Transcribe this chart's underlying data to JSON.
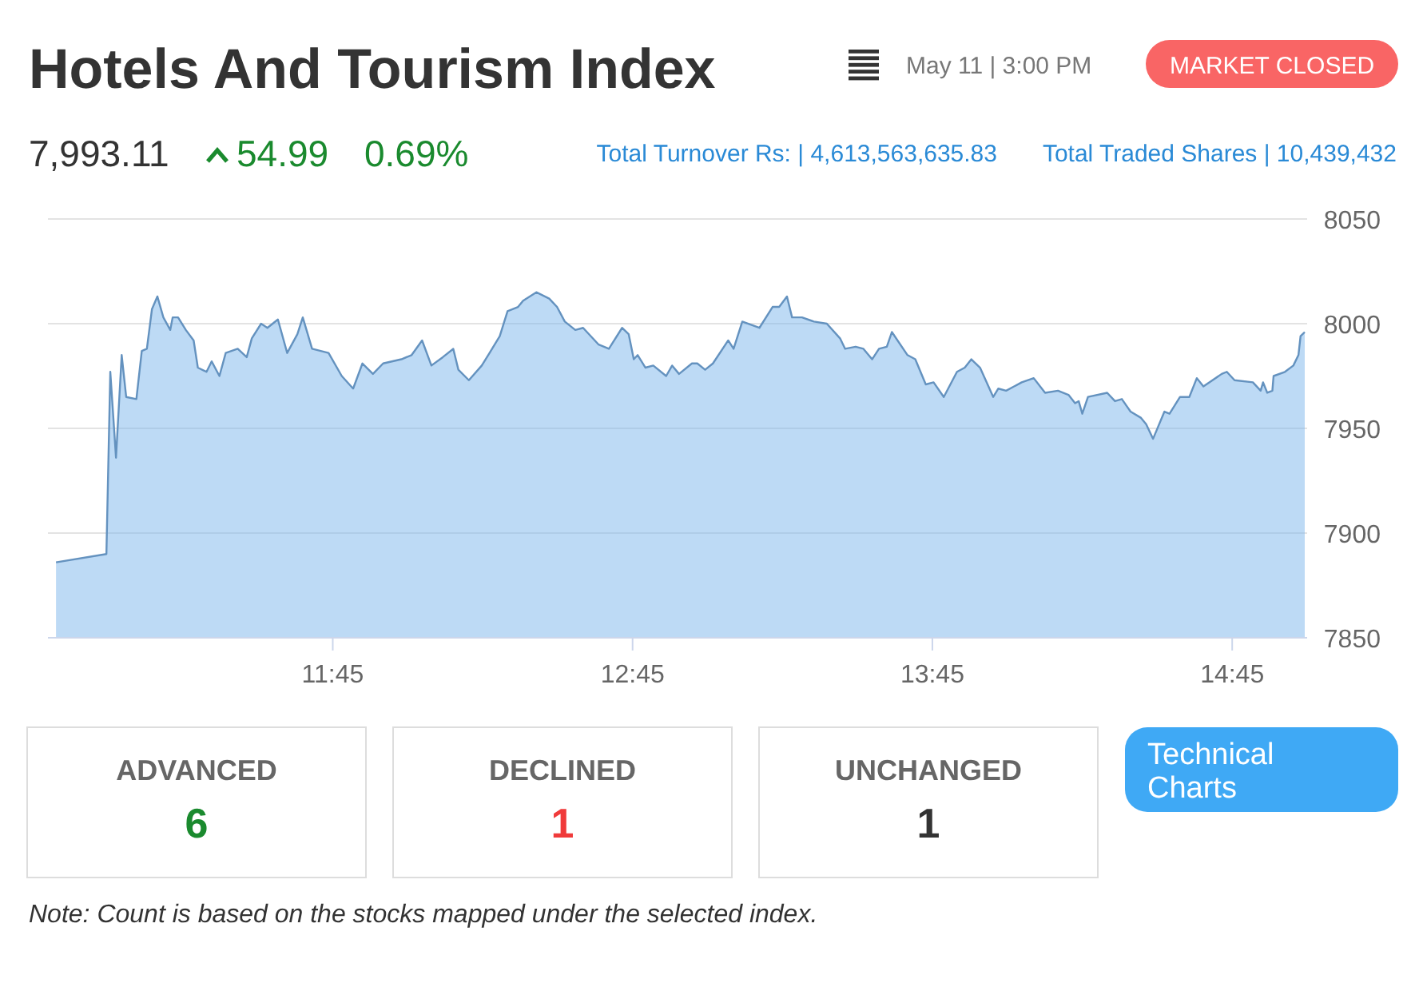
{
  "chart_data": {
    "type": "area",
    "title": "Hotels And Tourism Index",
    "subtitle": "May 11 | 3:00 PM",
    "annotations": [
      "MARKET CLOSED",
      "7,993.11",
      "54.99",
      "0.69%",
      "Total Turnover Rs: | 4,613,563,635.83",
      "Total Traded Shares | 10,439,432",
      "ADVANCED",
      "6",
      "DECLINED",
      "1",
      "UNCHANGED",
      "1",
      "Technical Charts",
      "Note: Count is based on the stocks mapped under the selected index."
    ],
    "xlim": [
      10.8,
      15.0
    ],
    "xticks": [
      {
        "value": 11.75,
        "label": "11:45"
      },
      {
        "value": 12.75,
        "label": "12:45"
      },
      {
        "value": 13.75,
        "label": "13:45"
      },
      {
        "value": 14.75,
        "label": "14:45"
      }
    ],
    "ylim": [
      7850,
      8050
    ],
    "yticks": [
      7850,
      7900,
      7950,
      8000,
      8050
    ],
    "grid": "y",
    "series": [
      {
        "color": "#7cb5ec",
        "x": [
          10.827,
          10.995,
          11.008,
          11.027,
          11.046,
          11.061,
          11.095,
          11.113,
          11.13,
          11.147,
          11.165,
          11.185,
          11.208,
          11.216,
          11.234,
          11.26,
          11.286,
          11.3,
          11.329,
          11.346,
          11.372,
          11.393,
          11.433,
          11.463,
          11.48,
          11.511,
          11.532,
          11.567,
          11.598,
          11.632,
          11.65,
          11.681,
          11.736,
          11.78,
          11.818,
          11.849,
          11.884,
          11.918,
          11.979,
          12.013,
          12.048,
          12.079,
          12.117,
          12.152,
          12.169,
          12.204,
          12.247,
          12.273,
          12.307,
          12.333,
          12.368,
          12.385,
          12.429,
          12.472,
          12.498,
          12.524,
          12.559,
          12.585,
          12.611,
          12.637,
          12.671,
          12.715,
          12.737,
          12.754,
          12.767,
          12.793,
          12.819,
          12.862,
          12.882,
          12.905,
          12.948,
          12.966,
          12.992,
          13.018,
          13.069,
          13.087,
          13.116,
          13.173,
          13.217,
          13.239,
          13.265,
          13.282,
          13.315,
          13.355,
          13.398,
          13.442,
          13.459,
          13.494,
          13.52,
          13.549,
          13.572,
          13.598,
          13.615,
          13.667,
          13.693,
          13.728,
          13.754,
          13.788,
          13.832,
          13.858,
          13.88,
          13.909,
          13.953,
          13.97,
          13.996,
          14.048,
          14.088,
          14.126,
          14.169,
          14.204,
          14.226,
          14.238,
          14.25,
          14.269,
          14.333,
          14.359,
          14.382,
          14.411,
          14.446,
          14.463,
          14.486,
          14.524,
          14.541,
          14.576,
          14.607,
          14.632,
          14.654,
          14.715,
          14.732,
          14.758,
          14.819,
          14.845,
          14.853,
          14.867,
          14.884,
          14.888,
          14.926,
          14.954,
          14.971,
          14.978,
          14.992
        ],
        "values": [
          7886,
          7890,
          7977,
          7936,
          7985,
          7965,
          7964,
          7987,
          7988,
          8007,
          8013,
          8003,
          7997,
          8003,
          8003,
          7997,
          7992,
          7979,
          7977,
          7982,
          7975,
          7986,
          7988,
          7984,
          7993,
          8000,
          7998,
          8002,
          7986,
          7995,
          8003,
          7988,
          7986,
          7975,
          7969,
          7981,
          7976,
          7981,
          7983,
          7985,
          7992,
          7980,
          7984,
          7988,
          7978,
          7973,
          7980,
          7986,
          7994,
          8006,
          8008,
          8011,
          8015,
          8012,
          8008,
          8001,
          7997,
          7998,
          7994,
          7990,
          7988,
          7998,
          7995,
          7983,
          7985,
          7979,
          7980,
          7975,
          7980,
          7976,
          7981,
          7981,
          7978,
          7981,
          7992,
          7988,
          8001,
          7998,
          8008,
          8008,
          8013,
          8003,
          8003,
          8001,
          8000,
          7993,
          7988,
          7989,
          7988,
          7983,
          7988,
          7989,
          7996,
          7985,
          7983,
          7971,
          7972,
          7965,
          7977,
          7979,
          7983,
          7979,
          7965,
          7969,
          7968,
          7972,
          7974,
          7967,
          7968,
          7966,
          7962,
          7963,
          7957,
          7965,
          7967,
          7963,
          7964,
          7958,
          7955,
          7952,
          7945,
          7958,
          7957,
          7965,
          7965,
          7974,
          7970,
          7976,
          7977,
          7973,
          7972,
          7968,
          7972,
          7967,
          7968,
          7975,
          7977,
          7980,
          7985,
          7994,
          7996
        ]
      }
    ]
  }
}
